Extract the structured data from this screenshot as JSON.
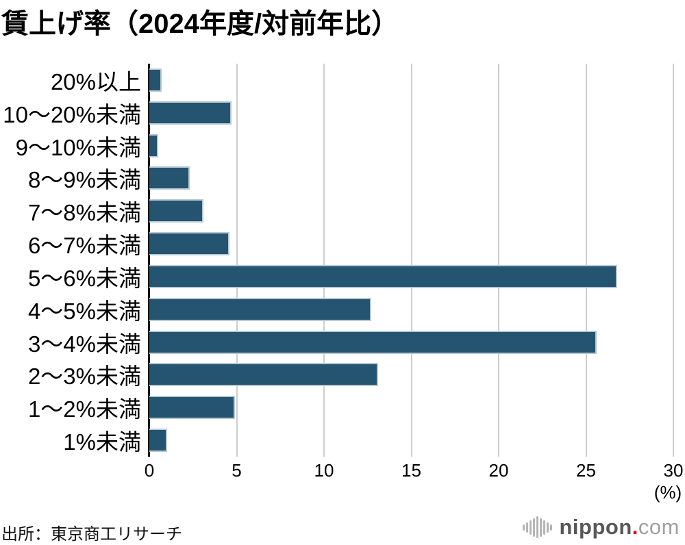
{
  "title": "賃上げ率（2024年度/対前年比）",
  "source": "出所：東京商工リサーチ",
  "axis": {
    "unit_label": "(%)"
  },
  "logo": {
    "icon": "soundwave-icon",
    "name": "nippon",
    "dot": ".",
    "tld": "com"
  },
  "chart_data": {
    "type": "bar",
    "orientation": "horizontal",
    "title": "賃上げ率（2024年度/対前年比）",
    "categories": [
      "20%以上",
      "10〜20%未満",
      "9〜10%未満",
      "8〜9%未満",
      "7〜8%未満",
      "6〜7%未満",
      "5〜6%未満",
      "4〜5%未満",
      "3〜4%未満",
      "2〜3%未満",
      "1〜2%未満",
      "1%未満"
    ],
    "values": [
      0.7,
      4.7,
      0.5,
      2.3,
      3.1,
      4.6,
      26.8,
      12.7,
      25.6,
      13.1,
      4.9,
      1.0
    ],
    "xlabel": "(%)",
    "xlim": [
      0,
      30
    ],
    "xticks": [
      0,
      5,
      10,
      15,
      20,
      25,
      30
    ],
    "grid": true,
    "legend_position": "none",
    "bar_color": "#24546F",
    "bar_border_color": "#b7c9d4",
    "gridline_color": "#cdcdcd",
    "axis_line_color": "#000000",
    "wave_icon_bar_heights": [
      9,
      15,
      21,
      27,
      32,
      27,
      21,
      15,
      9
    ]
  }
}
